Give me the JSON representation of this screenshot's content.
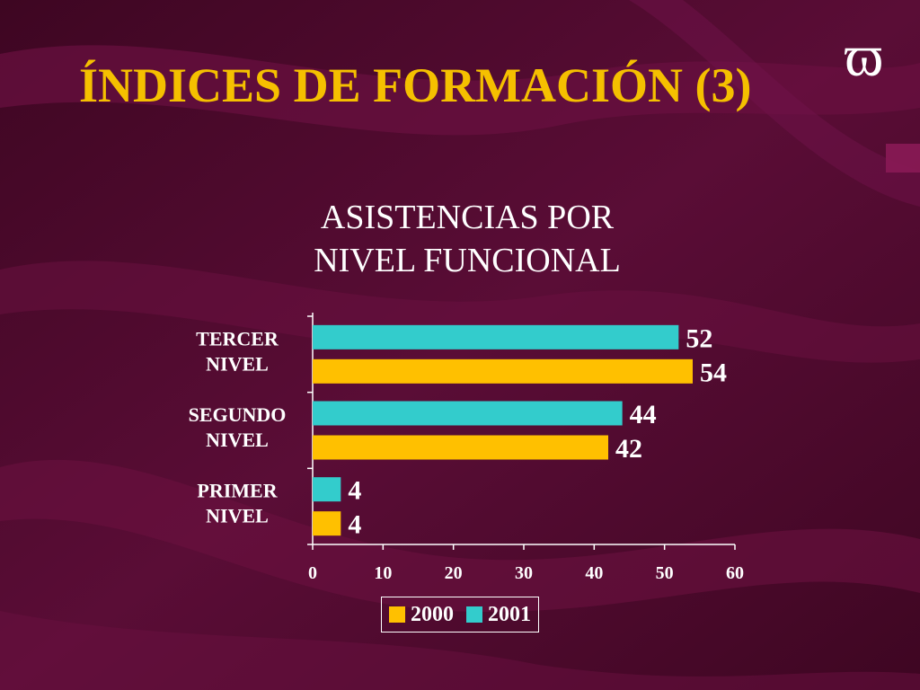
{
  "slide": {
    "title": "ÍNDICES DE FORMACIÓN (3)",
    "logo_glyph": "ϖ",
    "logo_icon": "omega-pi-logo-icon"
  },
  "colors": {
    "background": "#4a0a2c",
    "title": "#f5c000",
    "series_2000": "#ffc000",
    "series_2001": "#33cccc",
    "text": "#ffffff"
  },
  "chart_data": {
    "type": "bar",
    "orientation": "horizontal",
    "title": "ASISTENCIAS POR NIVEL FUNCIONAL",
    "title_lines": [
      "ASISTENCIAS POR",
      "NIVEL FUNCIONAL"
    ],
    "categories": [
      {
        "lines": [
          "TERCER",
          "NIVEL"
        ]
      },
      {
        "lines": [
          "SEGUNDO",
          "NIVEL"
        ]
      },
      {
        "lines": [
          "PRIMER",
          "NIVEL"
        ]
      }
    ],
    "series": [
      {
        "name": "2001",
        "color": "#33cccc",
        "values": [
          52,
          44,
          4
        ]
      },
      {
        "name": "2000",
        "color": "#ffc000",
        "values": [
          54,
          42,
          4
        ]
      }
    ],
    "xlim": [
      0,
      60
    ],
    "xticks": [
      0,
      10,
      20,
      30,
      40,
      50,
      60
    ],
    "grid": false,
    "legend": {
      "placement": "bottom",
      "entries": [
        {
          "label": "2000",
          "color": "#ffc000"
        },
        {
          "label": "2001",
          "color": "#33cccc"
        }
      ]
    }
  }
}
